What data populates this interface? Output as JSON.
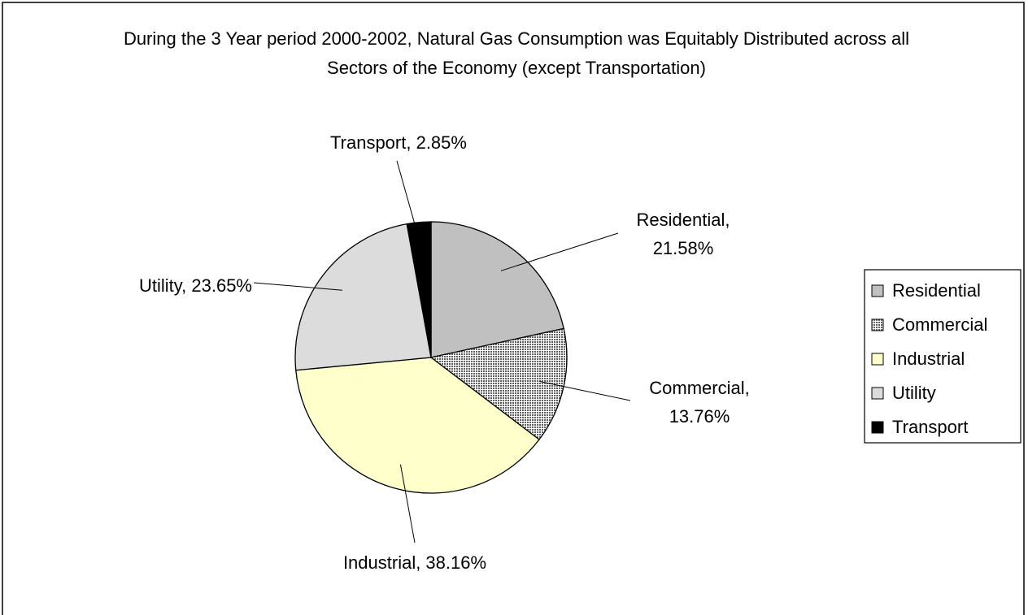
{
  "chart_data": {
    "type": "pie",
    "title": "During the 3 Year period 2000-2002, Natural Gas Consumption was Equitably Distributed across all Sectors of the Economy (except Transportation)",
    "categories": [
      "Residential",
      "Commercial",
      "Industrial",
      "Utility",
      "Transport"
    ],
    "values": [
      21.58,
      13.76,
      38.16,
      23.65,
      2.85
    ],
    "value_labels": [
      "Residential, 21.58%",
      "Commercial, 13.76%",
      "Industrial, 38.16%",
      "Utility, 23.65%",
      "Transport, 2.85%"
    ],
    "colors": [
      "#c0c0c0",
      "#a0a0a0",
      "#ffffcc",
      "#dcdcdc",
      "#000000"
    ],
    "legend": "right"
  }
}
